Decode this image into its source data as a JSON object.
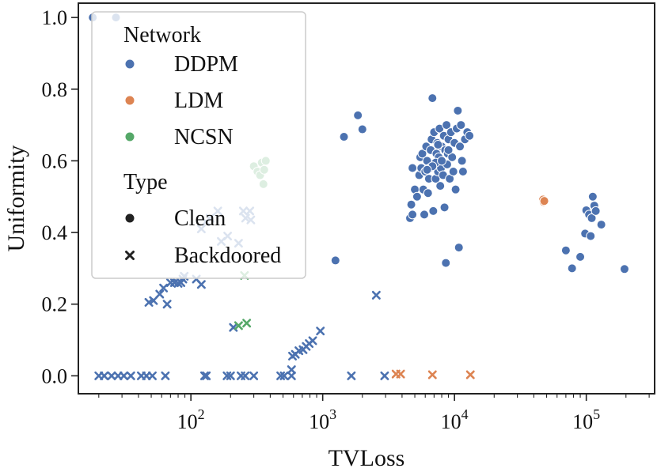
{
  "chart_data": {
    "type": "scatter",
    "title": "",
    "xlabel": "TVLoss",
    "ylabel": "Uniformity",
    "xscale": "log",
    "xlim": [
      14,
      330000
    ],
    "ylim": [
      -0.05,
      1.04
    ],
    "x_ticks": [
      {
        "value": 100,
        "base": "10",
        "exp": "2"
      },
      {
        "value": 1000,
        "base": "10",
        "exp": "3"
      },
      {
        "value": 10000,
        "base": "10",
        "exp": "4"
      },
      {
        "value": 100000,
        "base": "10",
        "exp": "5"
      }
    ],
    "y_ticks": [
      {
        "value": 0.0,
        "label": "0.0"
      },
      {
        "value": 0.2,
        "label": "0.2"
      },
      {
        "value": 0.4,
        "label": "0.4"
      },
      {
        "value": 0.6,
        "label": "0.6"
      },
      {
        "value": 0.8,
        "label": "0.8"
      },
      {
        "value": 1.0,
        "label": "1.0"
      }
    ],
    "legend": {
      "position": "top-left",
      "network_title": "Network",
      "type_title": "Type",
      "network_entries": [
        {
          "name": "DDPM",
          "color": "#4c72b0"
        },
        {
          "name": "LDM",
          "color": "#dd8452"
        },
        {
          "name": "NCSN",
          "color": "#55a868"
        }
      ],
      "type_entries": [
        {
          "name": "Clean",
          "marker": "circle"
        },
        {
          "name": "Backdoored",
          "marker": "x"
        }
      ]
    },
    "series": [
      {
        "network": "DDPM",
        "type": "Clean",
        "color": "#4c72b0",
        "marker": "circle",
        "points": [
          [
            18,
            1.0
          ],
          [
            27,
            1.0
          ],
          [
            1250,
            0.322
          ],
          [
            1450,
            0.667
          ],
          [
            1850,
            0.727
          ],
          [
            2000,
            0.688
          ],
          [
            4600,
            0.44
          ],
          [
            4700,
            0.478
          ],
          [
            4800,
            0.58
          ],
          [
            4800,
            0.45
          ],
          [
            5000,
            0.52
          ],
          [
            5200,
            0.5
          ],
          [
            5400,
            0.56
          ],
          [
            5500,
            0.61
          ],
          [
            5600,
            0.58
          ],
          [
            5700,
            0.62
          ],
          [
            5800,
            0.52
          ],
          [
            5900,
            0.45
          ],
          [
            6000,
            0.57
          ],
          [
            6100,
            0.64
          ],
          [
            6200,
            0.6
          ],
          [
            6300,
            0.51
          ],
          [
            6400,
            0.55
          ],
          [
            6500,
            0.58
          ],
          [
            6600,
            0.63
          ],
          [
            6700,
            0.66
          ],
          [
            6800,
            0.775
          ],
          [
            6900,
            0.46
          ],
          [
            7000,
            0.68
          ],
          [
            7100,
            0.59
          ],
          [
            7200,
            0.55
          ],
          [
            7300,
            0.62
          ],
          [
            7400,
            0.65
          ],
          [
            7500,
            0.57
          ],
          [
            7600,
            0.61
          ],
          [
            7700,
            0.69
          ],
          [
            7800,
            0.53
          ],
          [
            7900,
            0.58
          ],
          [
            8000,
            0.64
          ],
          [
            8100,
            0.6
          ],
          [
            8200,
            0.56
          ],
          [
            8300,
            0.67
          ],
          [
            8400,
            0.47
          ],
          [
            8500,
            0.63
          ],
          [
            8600,
            0.315
          ],
          [
            8700,
            0.7
          ],
          [
            8800,
            0.59
          ],
          [
            8900,
            0.62
          ],
          [
            9000,
            0.66
          ],
          [
            9200,
            0.55
          ],
          [
            9400,
            0.68
          ],
          [
            9600,
            0.61
          ],
          [
            9800,
            0.57
          ],
          [
            10000,
            0.65
          ],
          [
            10200,
            0.52
          ],
          [
            10400,
            0.69
          ],
          [
            10600,
            0.74
          ],
          [
            10800,
            0.358
          ],
          [
            11000,
            0.64
          ],
          [
            11200,
            0.7
          ],
          [
            11400,
            0.6
          ],
          [
            11600,
            0.57
          ],
          [
            12000,
            0.66
          ],
          [
            12500,
            0.68
          ],
          [
            13000,
            0.67
          ],
          [
            7200,
            0.595
          ],
          [
            6800,
            0.585
          ],
          [
            8000,
            0.6
          ],
          [
            7500,
            0.645
          ],
          [
            6200,
            0.575
          ],
          [
            9000,
            0.63
          ],
          [
            70000,
            0.35
          ],
          [
            78000,
            0.3
          ],
          [
            90000,
            0.332
          ],
          [
            98000,
            0.397
          ],
          [
            100000,
            0.462
          ],
          [
            105000,
            0.45
          ],
          [
            108000,
            0.39
          ],
          [
            110000,
            0.44
          ],
          [
            112000,
            0.5
          ],
          [
            115000,
            0.475
          ],
          [
            118000,
            0.46
          ],
          [
            130000,
            0.422
          ],
          [
            195000,
            0.298
          ]
        ]
      },
      {
        "network": "LDM",
        "type": "Clean",
        "color": "#dd8452",
        "marker": "circle",
        "points": [
          [
            47000,
            0.492
          ],
          [
            47500,
            0.485
          ],
          [
            48000,
            0.488
          ]
        ]
      },
      {
        "network": "NCSN",
        "type": "Clean",
        "color": "#55a868",
        "marker": "circle",
        "points": [
          [
            300,
            0.585
          ],
          [
            320,
            0.57
          ],
          [
            335,
            0.56
          ],
          [
            345,
            0.595
          ],
          [
            355,
            0.535
          ],
          [
            370,
            0.6
          ],
          [
            360,
            0.575
          ]
        ]
      },
      {
        "network": "DDPM",
        "type": "Backdoored",
        "color": "#4c72b0",
        "marker": "x",
        "points": [
          [
            20,
            0.0
          ],
          [
            22,
            0.0
          ],
          [
            25,
            0.0
          ],
          [
            28,
            0.0
          ],
          [
            31,
            0.0
          ],
          [
            35,
            0.0
          ],
          [
            42,
            0.0
          ],
          [
            46,
            0.0
          ],
          [
            51,
            0.0
          ],
          [
            64,
            0.0
          ],
          [
            127,
            0.0
          ],
          [
            131,
            0.0
          ],
          [
            188,
            0.0
          ],
          [
            200,
            0.0
          ],
          [
            240,
            0.0
          ],
          [
            258,
            0.0
          ],
          [
            300,
            0.0
          ],
          [
            480,
            0.0
          ],
          [
            510,
            0.0
          ],
          [
            580,
            0.0
          ],
          [
            1650,
            0.0
          ],
          [
            2950,
            0.0
          ],
          [
            48,
            0.205
          ],
          [
            52,
            0.21
          ],
          [
            58,
            0.228
          ],
          [
            62,
            0.245
          ],
          [
            66,
            0.2
          ],
          [
            70,
            0.26
          ],
          [
            75,
            0.26
          ],
          [
            80,
            0.258
          ],
          [
            84,
            0.26
          ],
          [
            87,
            0.27
          ],
          [
            89,
            0.278
          ],
          [
            110,
            0.27
          ],
          [
            120,
            0.255
          ],
          [
            120,
            0.41
          ],
          [
            130,
            0.43
          ],
          [
            140,
            0.44
          ],
          [
            160,
            0.46
          ],
          [
            170,
            0.375
          ],
          [
            190,
            0.39
          ],
          [
            210,
            0.135
          ],
          [
            230,
            0.37
          ],
          [
            250,
            0.46
          ],
          [
            260,
            0.44
          ],
          [
            280,
            0.46
          ],
          [
            285,
            0.435
          ],
          [
            580,
            0.017
          ],
          [
            590,
            0.055
          ],
          [
            620,
            0.06
          ],
          [
            660,
            0.07
          ],
          [
            710,
            0.073
          ],
          [
            750,
            0.082
          ],
          [
            790,
            0.09
          ],
          [
            840,
            0.098
          ],
          [
            960,
            0.125
          ],
          [
            2550,
            0.225
          ]
        ]
      },
      {
        "network": "LDM",
        "type": "Backdoored",
        "color": "#dd8452",
        "marker": "x",
        "points": [
          [
            3600,
            0.005
          ],
          [
            3900,
            0.005
          ],
          [
            6800,
            0.003
          ],
          [
            13200,
            0.003
          ]
        ]
      },
      {
        "network": "NCSN",
        "type": "Backdoored",
        "color": "#55a868",
        "marker": "x",
        "points": [
          [
            230,
            0.14
          ],
          [
            265,
            0.147
          ],
          [
            255,
            0.28
          ]
        ]
      }
    ]
  }
}
